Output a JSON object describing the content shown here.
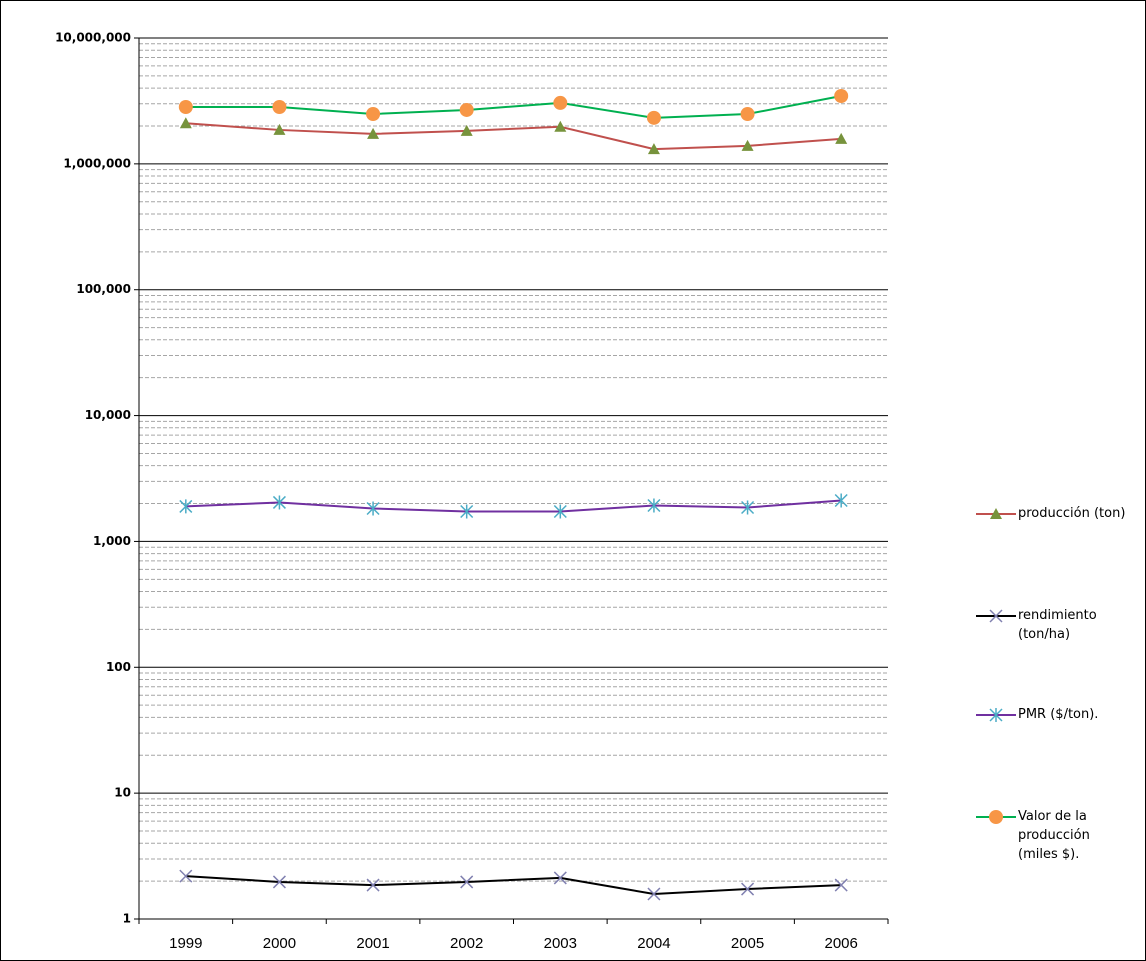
{
  "chart_data": {
    "type": "line",
    "log_scale": true,
    "grid": true,
    "minor_grid": true,
    "legend": "right",
    "categories": [
      "1999",
      "2000",
      "2001",
      "2002",
      "2003",
      "2004",
      "2005",
      "2006"
    ],
    "ylim": [
      1,
      10000000
    ],
    "yticks": [
      1,
      10,
      100,
      {
        "value": 1000,
        "label": "1,000"
      },
      {
        "value": 10000,
        "label": "10,000"
      },
      {
        "value": 100000,
        "label": "100,000"
      },
      {
        "value": 1000000,
        "label": "1,000,000"
      },
      {
        "value": 10000000,
        "label": "10,000,000"
      }
    ],
    "series": [
      {
        "name": "producción (ton)",
        "color": "#c0504d",
        "marker": "triangle",
        "marker_color": "#77933c",
        "values": [
          2100000,
          1860000,
          1730000,
          1830000,
          1970000,
          1310000,
          1390000,
          1580000
        ]
      },
      {
        "name": "rendimiento (ton/ha)",
        "color": "#000000",
        "marker": "x",
        "marker_color": "#8080b0",
        "values": [
          2.19,
          1.97,
          1.86,
          1.97,
          2.12,
          1.58,
          1.73,
          1.86
        ]
      },
      {
        "name": "PMR ($/ton).",
        "color": "#7030a0",
        "marker": "asterisk",
        "marker_color": "#4bacc6",
        "values": [
          1897,
          2040,
          1827,
          1730,
          1730,
          1930,
          1860,
          2115
        ]
      },
      {
        "name": "Valor de la producción (miles $).",
        "color": "#00b050",
        "marker": "circle",
        "marker_color": "#f79646",
        "values": [
          2830000,
          2830000,
          2490000,
          2680000,
          3050000,
          2320000,
          2490000,
          3460000
        ]
      }
    ]
  }
}
